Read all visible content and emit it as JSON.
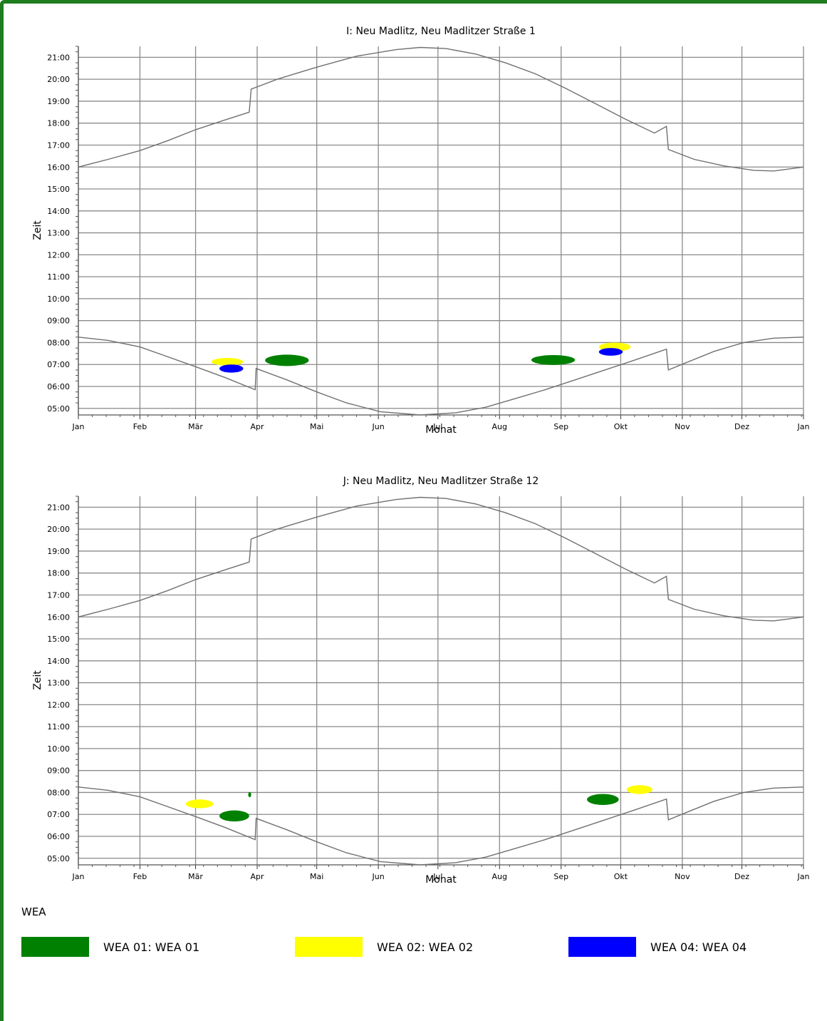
{
  "charts": [
    {
      "title": "I: Neu Madlitz, Neu Madlitzer Straße 1",
      "xlabel": "Monat",
      "ylabel": "Zeit",
      "y_ticks": [
        "05:00",
        "06:00",
        "07:00",
        "08:00",
        "09:00",
        "10:00",
        "11:00",
        "12:00",
        "13:00",
        "14:00",
        "15:00",
        "16:00",
        "17:00",
        "18:00",
        "19:00",
        "20:00",
        "21:00"
      ],
      "x_ticks": [
        "Jan",
        "Feb",
        "Mär",
        "Apr",
        "Mai",
        "Jun",
        "Jul",
        "Aug",
        "Sep",
        "Okt",
        "Nov",
        "Dez",
        "Jan"
      ]
    },
    {
      "title": "J: Neu Madlitz, Neu Madlitzer Straße 12",
      "xlabel": "Monat",
      "ylabel": "Zeit",
      "y_ticks": [
        "05:00",
        "06:00",
        "07:00",
        "08:00",
        "09:00",
        "10:00",
        "11:00",
        "12:00",
        "13:00",
        "14:00",
        "15:00",
        "16:00",
        "17:00",
        "18:00",
        "19:00",
        "20:00",
        "21:00"
      ],
      "x_ticks": [
        "Jan",
        "Feb",
        "Mär",
        "Apr",
        "Mai",
        "Jun",
        "Jul",
        "Aug",
        "Sep",
        "Okt",
        "Nov",
        "Dez",
        "Jan"
      ]
    }
  ],
  "legend": {
    "title": "WEA",
    "items": [
      {
        "label": "WEA 01: WEA 01",
        "color": "#008000"
      },
      {
        "label": "WEA 02: WEA 02",
        "color": "#ffff00"
      },
      {
        "label": "WEA 04: WEA 04",
        "color": "#0000ff"
      }
    ]
  },
  "chart_data": [
    {
      "type": "scatter",
      "title": "I: Neu Madlitz, Neu Madlitzer Straße 1",
      "xlabel": "Monat",
      "ylabel": "Zeit",
      "x_unit": "day of year",
      "y_unit": "hour of day",
      "xlim": [
        0,
        365
      ],
      "ylim": [
        4.7,
        21.5
      ],
      "grid": true,
      "sunrise_line": [
        [
          0,
          8.25
        ],
        [
          15,
          8.1
        ],
        [
          31,
          7.8
        ],
        [
          45,
          7.35
        ],
        [
          59,
          6.9
        ],
        [
          74,
          6.4
        ],
        [
          89,
          5.85
        ],
        [
          89.5,
          6.82
        ],
        [
          105,
          6.3
        ],
        [
          120,
          5.75
        ],
        [
          135,
          5.25
        ],
        [
          152,
          4.85
        ],
        [
          172,
          4.7
        ],
        [
          190,
          4.8
        ],
        [
          205,
          5.05
        ],
        [
          220,
          5.45
        ],
        [
          235,
          5.85
        ],
        [
          250,
          6.3
        ],
        [
          265,
          6.75
        ],
        [
          280,
          7.2
        ],
        [
          296,
          7.7
        ],
        [
          297,
          6.75
        ],
        [
          305,
          7.05
        ],
        [
          320,
          7.6
        ],
        [
          335,
          8.0
        ],
        [
          350,
          8.2
        ],
        [
          365,
          8.25
        ]
      ],
      "sunset_line": [
        [
          0,
          16.0
        ],
        [
          15,
          16.35
        ],
        [
          31,
          16.75
        ],
        [
          45,
          17.2
        ],
        [
          59,
          17.7
        ],
        [
          74,
          18.15
        ],
        [
          86,
          18.5
        ],
        [
          87,
          19.55
        ],
        [
          100,
          20.0
        ],
        [
          120,
          20.55
        ],
        [
          140,
          21.05
        ],
        [
          160,
          21.35
        ],
        [
          172,
          21.45
        ],
        [
          185,
          21.4
        ],
        [
          200,
          21.15
        ],
        [
          215,
          20.75
        ],
        [
          230,
          20.25
        ],
        [
          245,
          19.6
        ],
        [
          260,
          18.9
        ],
        [
          275,
          18.2
        ],
        [
          290,
          17.55
        ],
        [
          296,
          17.85
        ],
        [
          297,
          16.8
        ],
        [
          310,
          16.35
        ],
        [
          325,
          16.05
        ],
        [
          340,
          15.85
        ],
        [
          350,
          15.82
        ],
        [
          365,
          16.0
        ]
      ],
      "series": [
        {
          "name": "WEA 01: WEA 01",
          "color": "#008000",
          "regions": [
            {
              "x": [
                94,
                116
              ],
              "y": [
                6.93,
                7.45
              ]
            },
            {
              "x": [
                228,
                250
              ],
              "y": [
                6.98,
                7.43
              ]
            }
          ]
        },
        {
          "name": "WEA 02: WEA 02",
          "color": "#ffff00",
          "regions": [
            {
              "x": [
                67,
                83
              ],
              "y": [
                6.95,
                7.3
              ]
            },
            {
              "x": [
                262,
                278
              ],
              "y": [
                7.6,
                8.0
              ]
            }
          ]
        },
        {
          "name": "WEA 04: WEA 04",
          "color": "#0000ff",
          "regions": [
            {
              "x": [
                71,
                83
              ],
              "y": [
                6.63,
                7.0
              ]
            },
            {
              "x": [
                262,
                274
              ],
              "y": [
                7.4,
                7.75
              ]
            }
          ]
        }
      ]
    },
    {
      "type": "scatter",
      "title": "J: Neu Madlitz, Neu Madlitzer Straße 12",
      "xlabel": "Monat",
      "ylabel": "Zeit",
      "x_unit": "day of year",
      "y_unit": "hour of day",
      "xlim": [
        0,
        365
      ],
      "ylim": [
        4.7,
        21.5
      ],
      "grid": true,
      "sunrise_line": [
        [
          0,
          8.25
        ],
        [
          15,
          8.1
        ],
        [
          31,
          7.8
        ],
        [
          45,
          7.35
        ],
        [
          59,
          6.9
        ],
        [
          74,
          6.4
        ],
        [
          89,
          5.85
        ],
        [
          89.5,
          6.82
        ],
        [
          105,
          6.3
        ],
        [
          120,
          5.75
        ],
        [
          135,
          5.25
        ],
        [
          152,
          4.85
        ],
        [
          172,
          4.7
        ],
        [
          190,
          4.8
        ],
        [
          205,
          5.05
        ],
        [
          220,
          5.45
        ],
        [
          235,
          5.85
        ],
        [
          250,
          6.3
        ],
        [
          265,
          6.75
        ],
        [
          280,
          7.2
        ],
        [
          296,
          7.7
        ],
        [
          297,
          6.75
        ],
        [
          305,
          7.05
        ],
        [
          320,
          7.6
        ],
        [
          335,
          8.0
        ],
        [
          350,
          8.2
        ],
        [
          365,
          8.25
        ]
      ],
      "sunset_line": [
        [
          0,
          16.0
        ],
        [
          15,
          16.35
        ],
        [
          31,
          16.75
        ],
        [
          45,
          17.2
        ],
        [
          59,
          17.7
        ],
        [
          74,
          18.15
        ],
        [
          86,
          18.5
        ],
        [
          87,
          19.55
        ],
        [
          100,
          20.0
        ],
        [
          120,
          20.55
        ],
        [
          140,
          21.05
        ],
        [
          160,
          21.35
        ],
        [
          172,
          21.45
        ],
        [
          185,
          21.4
        ],
        [
          200,
          21.15
        ],
        [
          215,
          20.75
        ],
        [
          230,
          20.25
        ],
        [
          245,
          19.6
        ],
        [
          260,
          18.9
        ],
        [
          275,
          18.2
        ],
        [
          290,
          17.55
        ],
        [
          296,
          17.85
        ],
        [
          297,
          16.8
        ],
        [
          310,
          16.35
        ],
        [
          325,
          16.05
        ],
        [
          340,
          15.85
        ],
        [
          350,
          15.82
        ],
        [
          365,
          16.0
        ]
      ],
      "series": [
        {
          "name": "WEA 01: WEA 01",
          "color": "#008000",
          "regions": [
            {
              "x": [
                71,
                86
              ],
              "y": [
                6.68,
                7.18
              ]
            },
            {
              "x": [
                85.5,
                87
              ],
              "y": [
                7.78,
                8.02
              ]
            },
            {
              "x": [
                256,
                272
              ],
              "y": [
                7.43,
                7.93
              ]
            }
          ]
        },
        {
          "name": "WEA 02: WEA 02",
          "color": "#ffff00",
          "regions": [
            {
              "x": [
                54,
                68
              ],
              "y": [
                7.28,
                7.68
              ]
            },
            {
              "x": [
                276,
                289
              ],
              "y": [
                7.93,
                8.33
              ]
            }
          ]
        }
      ]
    }
  ]
}
